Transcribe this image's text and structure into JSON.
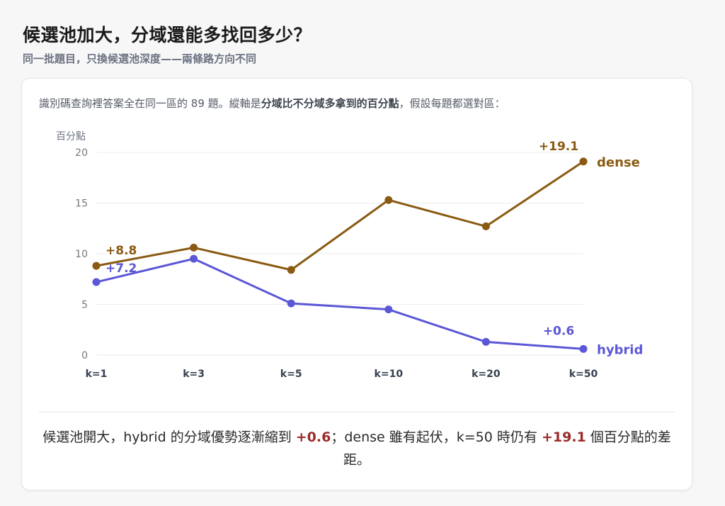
{
  "title": "候選池加大，分域還能多找回多少？",
  "subtitle": "同一批題目，只換候選池深度——兩條路方向不同",
  "intro": {
    "prefix": "識別碼查詢裡答案全在同一區的 89 題。縱軸是",
    "bold": "分域比不分域多拿到的百分點",
    "suffix": "，假設每題都選對區："
  },
  "summary": {
    "part1": "候選池開大，hybrid 的分域優勢逐漸縮到 ",
    "hl1": "+0.6",
    "part2": "；dense 雖有起伏，k=50 時仍有 ",
    "hl2": "+19.1",
    "part3": " 個百分點的差距。"
  },
  "colors": {
    "dense": "#8a5a12",
    "hybrid": "#5b57d6",
    "highlight": "#9b2b2b"
  },
  "chart_data": {
    "type": "line",
    "categories": [
      "k=1",
      "k=3",
      "k=5",
      "k=10",
      "k=20",
      "k=50"
    ],
    "ylabel": "百分點",
    "ylim": [
      0,
      20
    ],
    "yticks": [
      0,
      5,
      10,
      15,
      20
    ],
    "grid": true,
    "series": [
      {
        "name": "dense",
        "values": [
          8.8,
          10.6,
          8.4,
          15.3,
          12.7,
          19.1
        ],
        "labels": {
          "0": "+8.8",
          "5": "+19.1"
        }
      },
      {
        "name": "hybrid",
        "values": [
          7.2,
          9.5,
          5.1,
          4.5,
          1.3,
          0.6
        ],
        "labels": {
          "0": "+7.2",
          "5": "+0.6"
        }
      }
    ]
  }
}
